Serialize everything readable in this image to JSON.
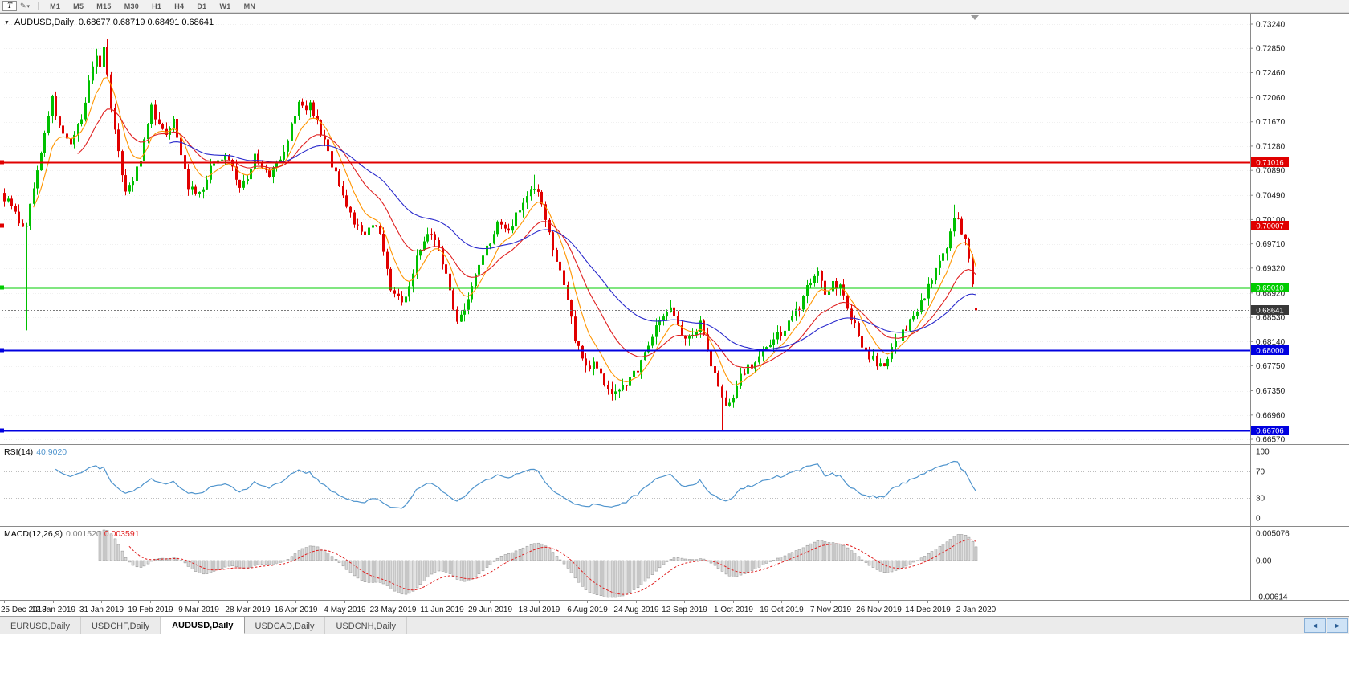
{
  "toolbar": {
    "text_tool": "T",
    "draw_tool_caret": "▾",
    "pen_icon": "✎",
    "timeframes": [
      "M1",
      "M5",
      "M15",
      "M30",
      "H1",
      "H4",
      "D1",
      "W1",
      "MN"
    ]
  },
  "header": {
    "dropdown_arrow": "▼",
    "symbol": "AUDUSD,Daily",
    "ohlc_text": "0.68677 0.68719 0.68491 0.68641"
  },
  "rsi_panel": {
    "label": "RSI(14)",
    "value": "40.9020",
    "line_color": "#4f94cd",
    "guide_levels": [
      70,
      30
    ],
    "range": [
      0,
      100
    ],
    "scale": [
      {
        "label": "100",
        "value": 100
      },
      {
        "label": "70",
        "value": 70
      },
      {
        "label": "30",
        "value": 30
      },
      {
        "label": "0",
        "value": 0
      }
    ]
  },
  "macd_panel": {
    "label": "MACD(12,26,9)",
    "hist_value": "0.001520",
    "signal_value": "0.003591",
    "hist_value_color": "#808080",
    "hist_fill": "#d9d9d9",
    "hist_outline": "#8f8f8f",
    "signal_color": "#e02020",
    "range": [
      -0.00614,
      0.005076
    ],
    "scale": [
      {
        "label": "0.005076",
        "value": 0.005076
      },
      {
        "label": "0.00",
        "value": 0
      },
      {
        "label": "-0.00614",
        "value": -0.00614
      }
    ]
  },
  "date_axis": [
    "25 Dec 2018",
    "12 Jan 2019",
    "31 Jan 2019",
    "19 Feb 2019",
    "9 Mar 2019",
    "28 Mar 2019",
    "16 Apr 2019",
    "4 May 2019",
    "23 May 2019",
    "11 Jun 2019",
    "29 Jun 2019",
    "18 Jul 2019",
    "6 Aug 2019",
    "24 Aug 2019",
    "12 Sep 2019",
    "1 Oct 2019",
    "19 Oct 2019",
    "7 Nov 2019",
    "26 Nov 2019",
    "14 Dec 2019",
    "2 Jan 2020"
  ],
  "tabs": [
    {
      "label": "EURUSD,Daily",
      "active": false
    },
    {
      "label": "USDCHF,Daily",
      "active": false
    },
    {
      "label": "AUDUSD,Daily",
      "active": true
    },
    {
      "label": "USDCAD,Daily",
      "active": false
    },
    {
      "label": "USDCNH,Daily",
      "active": false
    }
  ],
  "tab_scroll": {
    "left": "◄",
    "right": "►"
  },
  "chart_data": {
    "type": "candlestick",
    "symbol": "AUDUSD",
    "timeframe": "Daily",
    "up_color": "#00c000",
    "down_color": "#e00000",
    "candle_count": 265,
    "last_candle": {
      "o": 0.68677,
      "h": 0.68719,
      "l": 0.68491,
      "c": 0.68641
    },
    "price_axis": {
      "top": 0.7324,
      "bottom": 0.6657,
      "ticks": [
        "0.73240",
        "0.72850",
        "0.72460",
        "0.72060",
        "0.71670",
        "0.71280",
        "0.70890",
        "0.70490",
        "0.70100",
        "0.69710",
        "0.69320",
        "0.68920",
        "0.68530",
        "0.68140",
        "0.67750",
        "0.67350",
        "0.66960",
        "0.66570"
      ]
    },
    "levels": [
      {
        "value": 0.71016,
        "label": "0.71016",
        "color": "#e00000",
        "width": 2
      },
      {
        "value": 0.70007,
        "label": "0.70007",
        "color": "#e00000",
        "width": 1
      },
      {
        "value": 0.6901,
        "label": "0.69010",
        "color": "#00cc00",
        "width": 2
      },
      {
        "value": 0.68,
        "label": "0.68000",
        "color": "#0000e0",
        "width": 2
      },
      {
        "value": 0.66706,
        "label": "0.66706",
        "color": "#0000e0",
        "width": 2
      }
    ],
    "current_price": {
      "value": 0.68641,
      "label": "0.68641",
      "badge_color": "#383838"
    },
    "moving_averages": [
      {
        "period": 8,
        "color": "#ff9500",
        "name": "ma-fast"
      },
      {
        "period": 20,
        "color": "#e02020",
        "name": "ma-medium"
      },
      {
        "period": 45,
        "color": "#2929cc",
        "name": "ma-slow"
      }
    ],
    "price_path": [
      [
        0,
        0.7045
      ],
      [
        3,
        0.702
      ],
      [
        5,
        0.6995
      ],
      [
        6,
        0.7005
      ],
      [
        9,
        0.7085
      ],
      [
        12,
        0.718
      ],
      [
        13,
        0.7205
      ],
      [
        15,
        0.7155
      ],
      [
        18,
        0.7135
      ],
      [
        21,
        0.717
      ],
      [
        23,
        0.723
      ],
      [
        25,
        0.7275
      ],
      [
        26,
        0.726
      ],
      [
        27,
        0.7285
      ],
      [
        28,
        0.724
      ],
      [
        30,
        0.715
      ],
      [
        32,
        0.7085
      ],
      [
        33,
        0.706
      ],
      [
        35,
        0.7075
      ],
      [
        37,
        0.711
      ],
      [
        40,
        0.719
      ],
      [
        42,
        0.7165
      ],
      [
        44,
        0.715
      ],
      [
        46,
        0.7175
      ],
      [
        48,
        0.712
      ],
      [
        50,
        0.7065
      ],
      [
        53,
        0.705
      ],
      [
        56,
        0.709
      ],
      [
        58,
        0.7105
      ],
      [
        60,
        0.7115
      ],
      [
        62,
        0.709
      ],
      [
        64,
        0.706
      ],
      [
        66,
        0.708
      ],
      [
        68,
        0.711
      ],
      [
        70,
        0.7095
      ],
      [
        72,
        0.708
      ],
      [
        74,
        0.71
      ],
      [
        76,
        0.7125
      ],
      [
        78,
        0.716
      ],
      [
        80,
        0.7195
      ],
      [
        82,
        0.7185
      ],
      [
        83,
        0.7195
      ],
      [
        85,
        0.717
      ],
      [
        86,
        0.715
      ],
      [
        88,
        0.7115
      ],
      [
        90,
        0.7085
      ],
      [
        92,
        0.705
      ],
      [
        94,
        0.7015
      ],
      [
        96,
        0.6995
      ],
      [
        98,
        0.699
      ],
      [
        100,
        0.7
      ],
      [
        101,
        0.7005
      ],
      [
        103,
        0.696
      ],
      [
        105,
        0.6895
      ],
      [
        107,
        0.688
      ],
      [
        108,
        0.6872
      ],
      [
        110,
        0.6905
      ],
      [
        112,
        0.6955
      ],
      [
        114,
        0.6975
      ],
      [
        116,
        0.699
      ],
      [
        118,
        0.696
      ],
      [
        120,
        0.6925
      ],
      [
        122,
        0.687
      ],
      [
        123,
        0.6848
      ],
      [
        125,
        0.6865
      ],
      [
        126,
        0.6885
      ],
      [
        128,
        0.692
      ],
      [
        130,
        0.695
      ],
      [
        132,
        0.6975
      ],
      [
        134,
        0.701
      ],
      [
        136,
        0.7
      ],
      [
        137,
        0.699
      ],
      [
        139,
        0.7015
      ],
      [
        141,
        0.703
      ],
      [
        143,
        0.7055
      ],
      [
        144,
        0.7065
      ],
      [
        146,
        0.703
      ],
      [
        147,
        0.7005
      ],
      [
        149,
        0.6965
      ],
      [
        151,
        0.693
      ],
      [
        153,
        0.688
      ],
      [
        155,
        0.682
      ],
      [
        157,
        0.679
      ],
      [
        158,
        0.6772
      ],
      [
        160,
        0.6782
      ],
      [
        162,
        0.676
      ],
      [
        164,
        0.674
      ],
      [
        166,
        0.6732
      ],
      [
        168,
        0.6742
      ],
      [
        170,
        0.6752
      ],
      [
        172,
        0.677
      ],
      [
        174,
        0.6792
      ],
      [
        176,
        0.682
      ],
      [
        178,
        0.6852
      ],
      [
        180,
        0.6865
      ],
      [
        181,
        0.6872
      ],
      [
        183,
        0.684
      ],
      [
        185,
        0.6812
      ],
      [
        187,
        0.6825
      ],
      [
        189,
        0.6842
      ],
      [
        191,
        0.68
      ],
      [
        193,
        0.6762
      ],
      [
        194,
        0.674
      ],
      [
        195,
        0.672
      ],
      [
        197,
        0.6712
      ],
      [
        199,
        0.674
      ],
      [
        200,
        0.6762
      ],
      [
        202,
        0.6772
      ],
      [
        204,
        0.6782
      ],
      [
        206,
        0.68
      ],
      [
        208,
        0.6812
      ],
      [
        210,
        0.6822
      ],
      [
        212,
        0.6832
      ],
      [
        214,
        0.685
      ],
      [
        216,
        0.6872
      ],
      [
        218,
        0.69
      ],
      [
        220,
        0.6922
      ],
      [
        221,
        0.693
      ],
      [
        223,
        0.6892
      ],
      [
        225,
        0.6905
      ],
      [
        227,
        0.69
      ],
      [
        229,
        0.687
      ],
      [
        231,
        0.684
      ],
      [
        233,
        0.681
      ],
      [
        235,
        0.6792
      ],
      [
        237,
        0.678
      ],
      [
        239,
        0.6778
      ],
      [
        241,
        0.68
      ],
      [
        243,
        0.682
      ],
      [
        245,
        0.6838
      ],
      [
        247,
        0.6852
      ],
      [
        249,
        0.6875
      ],
      [
        251,
        0.69
      ],
      [
        253,
        0.6925
      ],
      [
        255,
        0.695
      ],
      [
        257,
        0.6985
      ],
      [
        258,
        0.7012
      ],
      [
        259,
        0.7008
      ],
      [
        260,
        0.6992
      ],
      [
        261,
        0.6975
      ],
      [
        262,
        0.6952
      ],
      [
        263,
        0.6905
      ],
      [
        264,
        0.68641
      ]
    ],
    "special_candles": [
      {
        "i": 6,
        "l": 0.6832
      },
      {
        "i": 27,
        "h": 0.7293
      },
      {
        "i": 144,
        "h": 0.7082
      },
      {
        "i": 162,
        "l": 0.6674
      },
      {
        "i": 195,
        "l": 0.6671
      },
      {
        "i": 258,
        "h": 0.7034
      }
    ]
  }
}
